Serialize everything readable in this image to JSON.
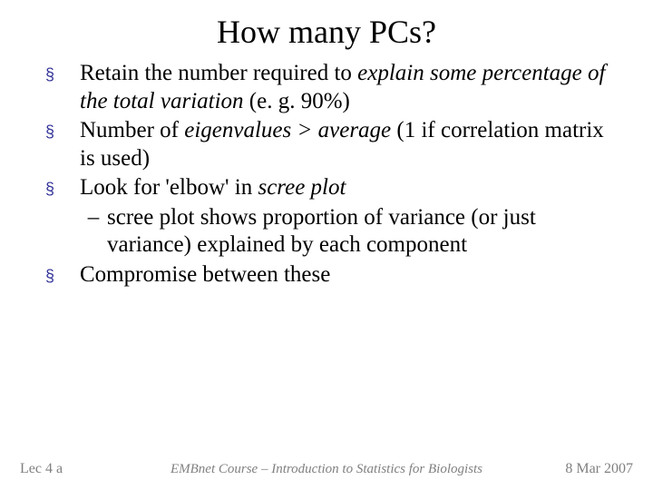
{
  "title": "How many PCs?",
  "bullets": {
    "b1": {
      "pre": "Retain the number required to ",
      "em": "explain some percentage of the total variation",
      "post": " (e. g. 90%)"
    },
    "b2": {
      "pre": "Number of ",
      "em": "eigenvalues > average",
      "post": " (1 if correlation matrix is used)"
    },
    "b3": {
      "pre": "Look for 'elbow' in ",
      "em": "scree plot",
      "post": ""
    },
    "b3sub": "scree plot shows proportion of variance (or just variance) explained by each component",
    "b4": "Compromise between these"
  },
  "footer": {
    "left": "Lec 4 a",
    "center": "EMBnet Course – Introduction to Statistics for Biologists",
    "right": "8 Mar 2007"
  },
  "glyphs": {
    "square": "§",
    "dash": "–"
  },
  "colors": {
    "bullet": "#333399",
    "text": "#000000",
    "footer": "#808080",
    "background": "#ffffff"
  }
}
